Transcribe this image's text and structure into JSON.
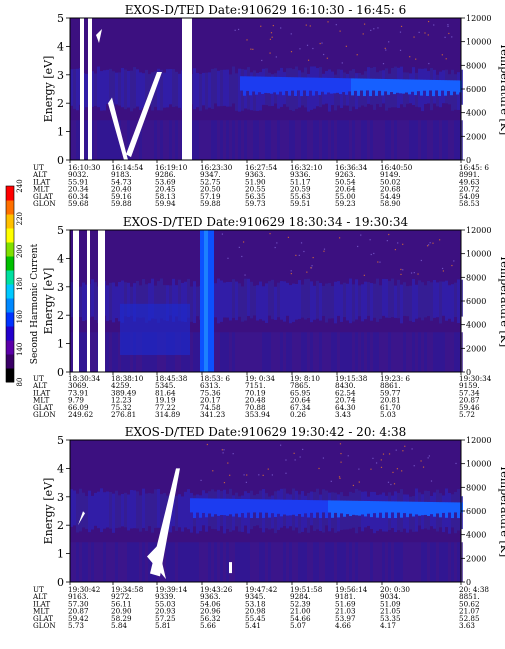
{
  "colorbar": {
    "label": "Second Harmonic Current",
    "ticks": [
      "80",
      "140",
      "160",
      "180",
      "200",
      "220",
      "240"
    ],
    "colors": [
      "#000000",
      "#3a0066",
      "#5b00a8",
      "#2200cc",
      "#0033ff",
      "#0088ff",
      "#00c8ff",
      "#00e0a0",
      "#00c000",
      "#80e000",
      "#ffff00",
      "#ffc000",
      "#ff7000",
      "#ff0000"
    ]
  },
  "chart_data": [
    {
      "type": "heatmap",
      "title": "EXOS-D/TED   Date:910629  16:10:30 - 16:45: 6",
      "ylabel": "Energy [eV]",
      "y2label": "Temperature [K]",
      "ylim": [
        0,
        5
      ],
      "y2lim": [
        0,
        12000
      ],
      "yticks": [
        "0",
        "1",
        "2",
        "3",
        "4",
        "5"
      ],
      "y2ticks": [
        "0",
        "2000",
        "4000",
        "6000",
        "8000",
        "10000",
        "12000"
      ],
      "rows": [
        "UT",
        "ALT",
        "ILAT",
        "MLT",
        "GLAT",
        "GLON"
      ],
      "columns": [
        [
          "16:10:30",
          "9032.",
          "55.91",
          "20.34",
          "60.34",
          "59.68"
        ],
        [
          "16:14:54",
          "9183.",
          "54.73",
          "20.40",
          "59.16",
          "59.88"
        ],
        [
          "16:19:10",
          "9286.",
          "53.69",
          "20.45",
          "58.13",
          "59.94"
        ],
        [
          "16:23:30",
          "9347.",
          "52.75",
          "20.50",
          "57.19",
          "59.88"
        ],
        [
          "16:27:54",
          "9363.",
          "51.90",
          "20.55",
          "56.35",
          "59.73"
        ],
        [
          "16:32:10",
          "9336.",
          "51.17",
          "20.59",
          "55.63",
          "59.51"
        ],
        [
          "16:36:34",
          "9263.",
          "50.54",
          "20.64",
          "55.00",
          "59.23"
        ],
        [
          "16:40:50",
          "9149.",
          "50.02",
          "20.68",
          "54.49",
          "58.90"
        ],
        [
          "16:45: 6",
          "8991.",
          "49.63",
          "20.72",
          "54.09",
          "58.53"
        ]
      ]
    },
    {
      "type": "heatmap",
      "title": "EXOS-D/TED   Date:910629  18:30:34 - 19:30:34",
      "ylabel": "Energy [eV]",
      "y2label": "Temperature [K]",
      "ylim": [
        0,
        5
      ],
      "y2lim": [
        0,
        12000
      ],
      "yticks": [
        "0",
        "1",
        "2",
        "3",
        "4",
        "5"
      ],
      "y2ticks": [
        "0",
        "2000",
        "4000",
        "6000",
        "8000",
        "10000",
        "12000"
      ],
      "rows": [
        "UT",
        "ALT",
        "ILAT",
        "MLT",
        "GLAT",
        "GLON"
      ],
      "columns": [
        [
          "18:30:34",
          "3069.",
          "73.91",
          "9.79",
          "66.09",
          "249.62"
        ],
        [
          "18:38:10",
          "4259.",
          "389.49",
          "12.23",
          "75.32",
          "276.81"
        ],
        [
          "18:45:38",
          "5345.",
          "81.64",
          "19.19",
          "77.22",
          "314.89"
        ],
        [
          "18:53: 6",
          "6313.",
          "75.36",
          "20.17",
          "74.58",
          "341.23"
        ],
        [
          "19: 0:34",
          "7151.",
          "70.19",
          "20.48",
          "70.88",
          "353.94"
        ],
        [
          "19: 8:10",
          "7865.",
          "65.95",
          "20.64",
          "67.34",
          "0.26"
        ],
        [
          "19:15:38",
          "8430.",
          "62.54",
          "20.74",
          "64.30",
          "3.43"
        ],
        [
          "19:23: 6",
          "8861.",
          "59.77",
          "20.81",
          "61.70",
          "5.03"
        ],
        [
          "19:30:34",
          "9159.",
          "57.34",
          "20.87",
          "59.46",
          "5.72"
        ]
      ]
    },
    {
      "type": "heatmap",
      "title": "EXOS-D/TED   Date:910629  19:30:42 - 20: 4:38",
      "ylabel": "Energy [eV]",
      "y2label": "Temperature [K]",
      "ylim": [
        0,
        5
      ],
      "y2lim": [
        0,
        12000
      ],
      "yticks": [
        "0",
        "1",
        "2",
        "3",
        "4",
        "5"
      ],
      "y2ticks": [
        "0",
        "2000",
        "4000",
        "6000",
        "8000",
        "10000",
        "12000"
      ],
      "rows": [
        "UT",
        "ALT",
        "ILAT",
        "MLT",
        "GLAT",
        "GLON"
      ],
      "columns": [
        [
          "19:30:42",
          "9163.",
          "57.30",
          "20.87",
          "59.42",
          "5.73"
        ],
        [
          "19:34:58",
          "9272.",
          "56.11",
          "20.90",
          "58.29",
          "5.84"
        ],
        [
          "19:39:14",
          "9339.",
          "55.03",
          "20.93",
          "57.25",
          "5.81"
        ],
        [
          "19:43:26",
          "9363.",
          "54.06",
          "20.96",
          "56.32",
          "5.66"
        ],
        [
          "19:47:42",
          "9345.",
          "53.18",
          "20.98",
          "55.45",
          "5.41"
        ],
        [
          "19:51:58",
          "9284.",
          "52.39",
          "21.00",
          "54.66",
          "5.07"
        ],
        [
          "19:56:14",
          "9181.",
          "51.69",
          "21.03",
          "53.97",
          "4.66"
        ],
        [
          "20: 0:30",
          "9034.",
          "51.09",
          "21.05",
          "53.35",
          "4.17"
        ],
        [
          "20: 4:38",
          "8851.",
          "50.62",
          "21.07",
          "52.85",
          "3.63"
        ]
      ]
    }
  ]
}
